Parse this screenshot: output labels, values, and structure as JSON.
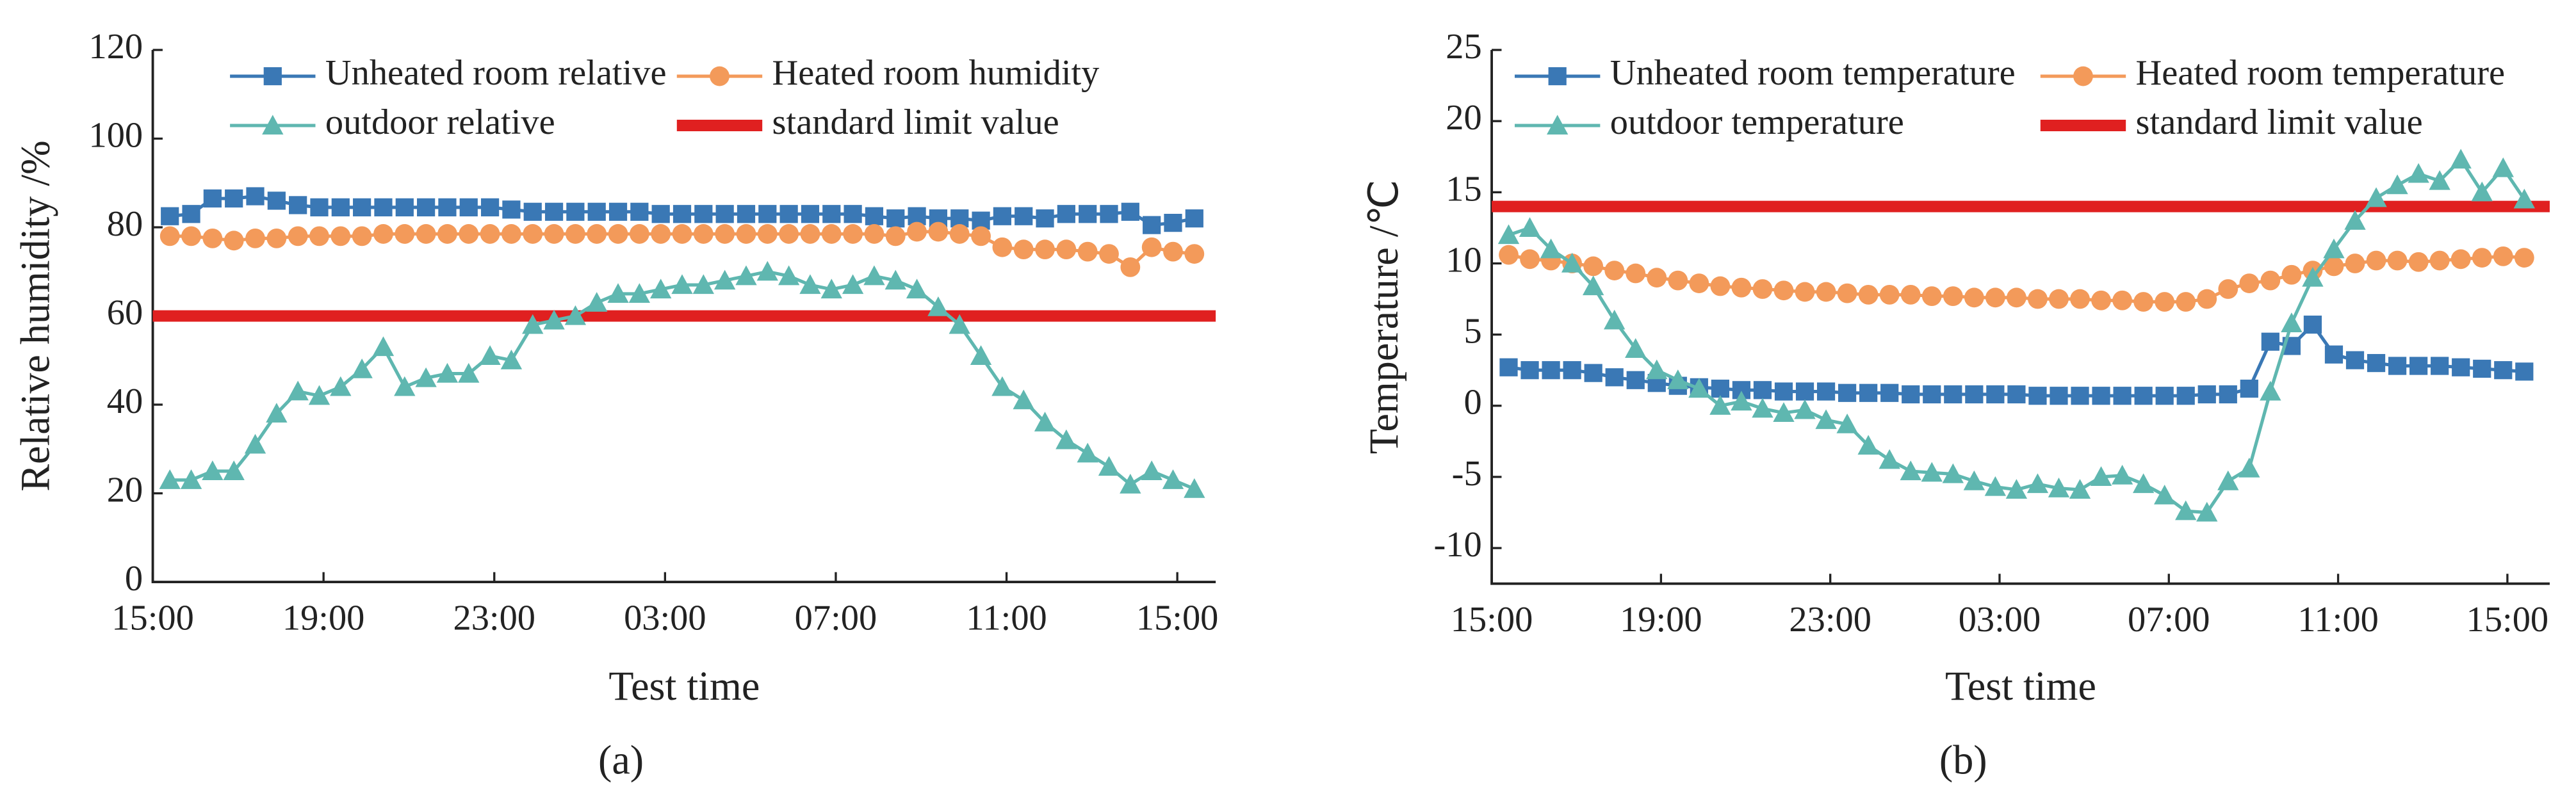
{
  "chart_data": [
    {
      "type": "line",
      "caption": "(a)",
      "x_label": "Test time",
      "y_label": "Relative humidity /%",
      "xlim": [
        0,
        24.9
      ],
      "ylim": [
        0,
        120
      ],
      "xticks": [
        {
          "value": 0,
          "label": "15:00"
        },
        {
          "value": 4,
          "label": "19:00"
        },
        {
          "value": 8,
          "label": "23:00"
        },
        {
          "value": 12,
          "label": "03:00"
        },
        {
          "value": 16,
          "label": "07:00"
        },
        {
          "value": 20,
          "label": "11:00"
        },
        {
          "value": 24,
          "label": "15:00"
        }
      ],
      "yticks": [
        0,
        20,
        40,
        60,
        80,
        100,
        120
      ],
      "x": [
        0.4,
        0.9,
        1.4,
        1.9,
        2.4,
        2.9,
        3.4,
        3.9,
        4.4,
        4.9,
        5.4,
        5.9,
        6.4,
        6.9,
        7.4,
        7.9,
        8.4,
        8.9,
        9.4,
        9.9,
        10.4,
        10.9,
        11.4,
        11.9,
        12.4,
        12.9,
        13.4,
        13.9,
        14.4,
        14.9,
        15.4,
        15.9,
        16.4,
        16.9,
        17.4,
        17.9,
        18.4,
        18.9,
        19.4,
        19.9,
        20.4,
        20.9,
        21.4,
        21.9,
        22.4,
        22.9,
        23.4,
        23.9,
        24.4
      ],
      "series": [
        {
          "name": "Unheated room relative",
          "color": "#3a78b5",
          "marker": "square",
          "values": [
            82.5,
            83,
            86.5,
            86.5,
            87,
            86,
            85,
            84.5,
            84.5,
            84.5,
            84.5,
            84.5,
            84.5,
            84.5,
            84.5,
            84.5,
            84,
            83.5,
            83.5,
            83.5,
            83.5,
            83.5,
            83.5,
            83,
            83,
            83,
            83,
            83,
            83,
            83,
            83,
            83,
            83,
            82.5,
            82,
            82.5,
            82,
            82,
            81.5,
            82.5,
            82.5,
            82,
            83,
            83,
            83,
            83.5,
            80.5,
            81,
            82
          ]
        },
        {
          "name": "Heated room humidity",
          "color": "#f39a5a",
          "marker": "circle",
          "values": [
            78,
            78,
            77.5,
            77,
            77.5,
            77.5,
            78,
            78,
            78,
            78,
            78.5,
            78.5,
            78.5,
            78.5,
            78.5,
            78.5,
            78.5,
            78.5,
            78.5,
            78.5,
            78.5,
            78.5,
            78.5,
            78.5,
            78.5,
            78.5,
            78.5,
            78.5,
            78.5,
            78.5,
            78.5,
            78.5,
            78.5,
            78.5,
            78,
            79,
            79,
            78.5,
            78,
            75.5,
            75,
            75,
            75,
            74.5,
            74,
            71,
            75.5,
            74.5,
            74
          ]
        },
        {
          "name": "outdoor relative",
          "color": "#5fb7b0",
          "marker": "triangle",
          "values": [
            23,
            23,
            25,
            25,
            31,
            38,
            43,
            42,
            44,
            48,
            53,
            44,
            46,
            47,
            47,
            51,
            50,
            58,
            59,
            60,
            63,
            65,
            65,
            66,
            67,
            67,
            68,
            69,
            70,
            69,
            67,
            66,
            67,
            69,
            68,
            66,
            62,
            58,
            51,
            44,
            41,
            36,
            32,
            29,
            26,
            22,
            25,
            23,
            21
          ]
        }
      ],
      "limit": {
        "name": "standard limit value",
        "color": "#e02020",
        "value": 60
      }
    },
    {
      "type": "line",
      "caption": "(b)",
      "x_label": "Test time",
      "y_label": "Temperature /℃",
      "xlim": [
        0,
        25
      ],
      "ylim": [
        -12.5,
        25
      ],
      "xticks": [
        {
          "value": 0,
          "label": "15:00"
        },
        {
          "value": 4,
          "label": "19:00"
        },
        {
          "value": 8,
          "label": "23:00"
        },
        {
          "value": 12,
          "label": "03:00"
        },
        {
          "value": 16,
          "label": "07:00"
        },
        {
          "value": 20,
          "label": "11:00"
        },
        {
          "value": 24,
          "label": "15:00"
        }
      ],
      "yticks": [
        -10,
        -5,
        0,
        5,
        10,
        15,
        20,
        25
      ],
      "x": [
        0.4,
        0.9,
        1.4,
        1.9,
        2.4,
        2.9,
        3.4,
        3.9,
        4.4,
        4.9,
        5.4,
        5.9,
        6.4,
        6.9,
        7.4,
        7.9,
        8.4,
        8.9,
        9.4,
        9.9,
        10.4,
        10.9,
        11.4,
        11.9,
        12.4,
        12.9,
        13.4,
        13.9,
        14.4,
        14.9,
        15.4,
        15.9,
        16.4,
        16.9,
        17.4,
        17.9,
        18.4,
        18.9,
        19.4,
        19.9,
        20.4,
        20.9,
        21.4,
        21.9,
        22.4,
        22.9,
        23.4,
        23.9,
        24.4
      ],
      "series": [
        {
          "name": "Unheated room temperature",
          "color": "#3a78b5",
          "marker": "square",
          "values": [
            2.7,
            2.5,
            2.5,
            2.5,
            2.3,
            2,
            1.8,
            1.6,
            1.4,
            1.3,
            1.2,
            1.1,
            1.1,
            1,
            1,
            1,
            0.9,
            0.9,
            0.9,
            0.8,
            0.8,
            0.8,
            0.8,
            0.8,
            0.8,
            0.7,
            0.7,
            0.7,
            0.7,
            0.7,
            0.7,
            0.7,
            0.7,
            0.8,
            0.8,
            1.2,
            4.5,
            4.2,
            5.7,
            3.6,
            3.2,
            3,
            2.8,
            2.8,
            2.8,
            2.7,
            2.6,
            2.5,
            2.4
          ]
        },
        {
          "name": "Heated room temperature",
          "color": "#f39a5a",
          "marker": "circle",
          "values": [
            10.6,
            10.3,
            10.2,
            10,
            9.8,
            9.5,
            9.3,
            9,
            8.8,
            8.6,
            8.4,
            8.3,
            8.2,
            8.1,
            8,
            8,
            7.9,
            7.8,
            7.8,
            7.8,
            7.7,
            7.7,
            7.6,
            7.6,
            7.6,
            7.5,
            7.5,
            7.5,
            7.4,
            7.4,
            7.3,
            7.3,
            7.3,
            7.5,
            8.2,
            8.6,
            8.8,
            9.2,
            9.5,
            9.8,
            10,
            10.2,
            10.2,
            10.1,
            10.2,
            10.3,
            10.4,
            10.5,
            10.4
          ]
        },
        {
          "name": "outdoor temperature",
          "color": "#5fb7b0",
          "marker": "triangle",
          "values": [
            12,
            12.5,
            11,
            10,
            8.4,
            6,
            4,
            2.5,
            1.8,
            1.2,
            0,
            0.3,
            -0.2,
            -0.5,
            -0.3,
            -1,
            -1.3,
            -2.8,
            -3.8,
            -4.6,
            -4.7,
            -4.8,
            -5.3,
            -5.7,
            -5.9,
            -5.5,
            -5.8,
            -5.9,
            -5,
            -4.9,
            -5.5,
            -6.3,
            -7.4,
            -7.5,
            -5.3,
            -4.4,
            1,
            5.8,
            9,
            11,
            13,
            14.6,
            15.5,
            16.3,
            15.8,
            17.3,
            15,
            16.7,
            14.5
          ]
        }
      ],
      "limit": {
        "name": "standard limit value",
        "color": "#e02020",
        "value": 14
      }
    }
  ]
}
